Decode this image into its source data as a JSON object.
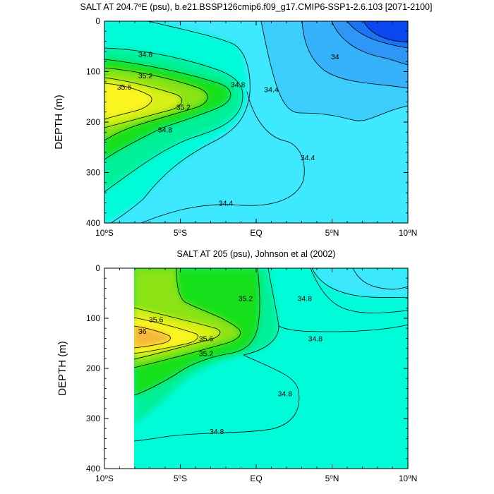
{
  "chart_data": [
    {
      "type": "contour",
      "title": "SALT AT 204.7°E (psu), b.e21.BSSP126cmip6.f09_g17.CMIP6-SSP1-2.6.103 [2071-2100]",
      "title_main": "SALT AT 204.7",
      "title_sup": "o",
      "title_rest": "E (psu), b.e21.BSSP126cmip6.f09_g17.CMIP6-SSP1-2.6.103 [2071-2100]",
      "ylabel": "DEPTH (m)",
      "xlim": [
        -10,
        10
      ],
      "ylim": [
        400,
        0
      ],
      "xticks": [
        -10,
        -5,
        0,
        5,
        10
      ],
      "xtick_labels": [
        {
          "num": "10",
          "sup": "o",
          "dir": "S"
        },
        {
          "num": "5",
          "sup": "o",
          "dir": "S"
        },
        {
          "num": "EQ",
          "sup": "",
          "dir": ""
        },
        {
          "num": "5",
          "sup": "o",
          "dir": "N"
        },
        {
          "num": "10",
          "sup": "o",
          "dir": "N"
        }
      ],
      "yticks": [
        0,
        100,
        200,
        300,
        400
      ],
      "ytick_labels": [
        "0",
        "100",
        "200",
        "300",
        "400"
      ],
      "data_xrange": [
        -10,
        10
      ],
      "levels": [
        33.6,
        33.8,
        34.0,
        34.2,
        34.4,
        34.6,
        34.8,
        35.0,
        35.2,
        35.4,
        35.6,
        35.8
      ],
      "fill_colors": [
        "#0b47f0",
        "#1a74f3",
        "#2e97f6",
        "#36b2fa",
        "#3bcdfc",
        "#3ee8ff",
        "#00fbd9",
        "#00f09a",
        "#18e01c",
        "#8be318",
        "#d9f018",
        "#fbf524",
        "#f5b73c"
      ],
      "contour_labels": [
        {
          "text": "34.8",
          "x": -7.3,
          "y": 65
        },
        {
          "text": "35.2",
          "x": -7.3,
          "y": 108
        },
        {
          "text": "35.6",
          "x": -8.7,
          "y": 130
        },
        {
          "text": "35.2",
          "x": -4.8,
          "y": 170
        },
        {
          "text": "34.8",
          "x": -6.0,
          "y": 215
        },
        {
          "text": "34.8",
          "x": -1.2,
          "y": 125
        },
        {
          "text": "34.4",
          "x": 1.0,
          "y": 135
        },
        {
          "text": "34.4",
          "x": 3.4,
          "y": 270
        },
        {
          "text": "34.4",
          "x": -2.0,
          "y": 360
        },
        {
          "text": "34",
          "x": 5.2,
          "y": 70
        }
      ]
    },
    {
      "type": "contour",
      "title": "SALT AT 205 (psu), Johnson et al (2002)",
      "ylabel": "DEPTH (m)",
      "xlim": [
        -10,
        10
      ],
      "ylim": [
        400,
        0
      ],
      "xticks": [
        -10,
        -5,
        0,
        5,
        10
      ],
      "xtick_labels": [
        {
          "num": "10",
          "sup": "o",
          "dir": "S"
        },
        {
          "num": "5",
          "sup": "o",
          "dir": "S"
        },
        {
          "num": "EQ",
          "sup": "",
          "dir": ""
        },
        {
          "num": "5",
          "sup": "o",
          "dir": "N"
        },
        {
          "num": "10",
          "sup": "o",
          "dir": "N"
        }
      ],
      "yticks": [
        0,
        100,
        200,
        300,
        400
      ],
      "ytick_labels": [
        "0",
        "100",
        "200",
        "300",
        "400"
      ],
      "data_xrange": [
        -8,
        10
      ],
      "levels": [
        33.6,
        33.8,
        34.0,
        34.2,
        34.4,
        34.6,
        34.8,
        35.0,
        35.2,
        35.4,
        35.6,
        35.8
      ],
      "fill_colors": [
        "#0b47f0",
        "#1a74f3",
        "#2e97f6",
        "#36b2fa",
        "#3bcdfc",
        "#3ee8ff",
        "#00fbd9",
        "#00f09a",
        "#18e01c",
        "#8be318",
        "#d9f018",
        "#fbf524",
        "#f5b73c"
      ],
      "contour_labels": [
        {
          "text": "35.6",
          "x": -6.6,
          "y": 102
        },
        {
          "text": "36",
          "x": -7.5,
          "y": 125
        },
        {
          "text": "35.6",
          "x": -3.3,
          "y": 140
        },
        {
          "text": "35.2",
          "x": -3.3,
          "y": 170
        },
        {
          "text": "35.2",
          "x": -0.7,
          "y": 60
        },
        {
          "text": "34.8",
          "x": 3.2,
          "y": 60
        },
        {
          "text": "34.8",
          "x": 3.9,
          "y": 140
        },
        {
          "text": "34.8",
          "x": 1.9,
          "y": 250
        },
        {
          "text": "34.8",
          "x": -2.6,
          "y": 325
        }
      ]
    }
  ]
}
